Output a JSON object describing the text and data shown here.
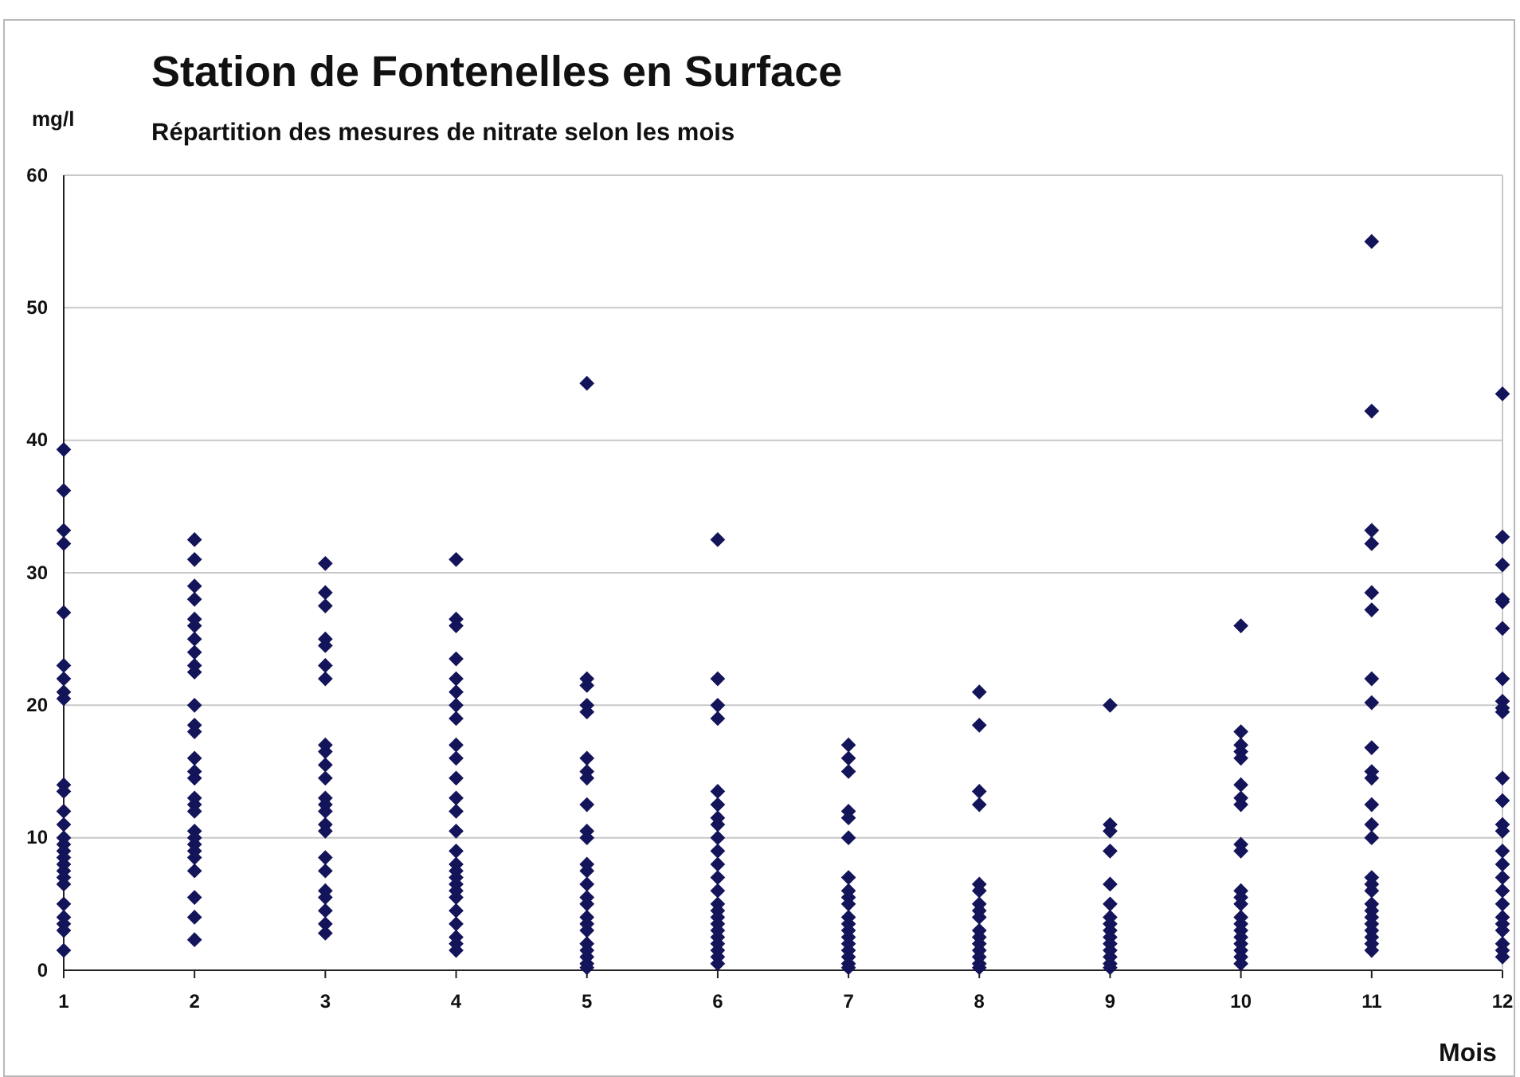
{
  "chart_data": {
    "type": "scatter",
    "title": "Station de Fontenelles en Surface",
    "subtitle": "Répartition des mesures de nitrate selon les mois",
    "xlabel": "Mois",
    "ylabel": "mg/l",
    "x": [
      1,
      1,
      1,
      1,
      1,
      1,
      1,
      1,
      1,
      1,
      1,
      1,
      1,
      1,
      1,
      1,
      1,
      1,
      1,
      1,
      1,
      1,
      1,
      1,
      1,
      1,
      2,
      2,
      2,
      2,
      2,
      2,
      2,
      2,
      2,
      2,
      2,
      2,
      2,
      2,
      2,
      2,
      2,
      2,
      2,
      2,
      2,
      2,
      2,
      2,
      2,
      2,
      2,
      2,
      3,
      3,
      3,
      3,
      3,
      3,
      3,
      3,
      3,
      3,
      3,
      3,
      3,
      3,
      3,
      3,
      3,
      3,
      3,
      3,
      3,
      3,
      3,
      4,
      4,
      4,
      4,
      4,
      4,
      4,
      4,
      4,
      4,
      4,
      4,
      4,
      4,
      4,
      4,
      4,
      4,
      4,
      4,
      4,
      4,
      4,
      4,
      4,
      4,
      5,
      5,
      5,
      5,
      5,
      5,
      5,
      5,
      5,
      5,
      5,
      5,
      5,
      5,
      5,
      5,
      5,
      5,
      5,
      5,
      5,
      5,
      5,
      5,
      6,
      6,
      6,
      6,
      6,
      6,
      6,
      6,
      6,
      6,
      6,
      6,
      6,
      6,
      6,
      6,
      6,
      6,
      6,
      6,
      6,
      6,
      6,
      7,
      7,
      7,
      7,
      7,
      7,
      7,
      7,
      7,
      7,
      7,
      7,
      7,
      7,
      7,
      7,
      7,
      7,
      7,
      8,
      8,
      8,
      8,
      8,
      8,
      8,
      8,
      8,
      8,
      8,
      8,
      8,
      8,
      8,
      8,
      9,
      9,
      9,
      9,
      9,
      9,
      9,
      9,
      9,
      9,
      9,
      9,
      9,
      9,
      9,
      10,
      10,
      10,
      10,
      10,
      10,
      10,
      10,
      10,
      10,
      10,
      10,
      10,
      10,
      10,
      10,
      10,
      10,
      10,
      10,
      10,
      11,
      11,
      11,
      11,
      11,
      11,
      11,
      11,
      11,
      11,
      11,
      11,
      11,
      11,
      11,
      11,
      11,
      11,
      11,
      11,
      11,
      11,
      11,
      11,
      11,
      12,
      12,
      12,
      12,
      12,
      12,
      12,
      12,
      12,
      12,
      12,
      12,
      12,
      12,
      12,
      12,
      12,
      12,
      12,
      12,
      12,
      12,
      12,
      12,
      12
    ],
    "values": [
      39.3,
      36.2,
      33.2,
      32.2,
      27,
      23,
      22,
      21,
      20.5,
      14,
      13.5,
      12,
      11,
      10,
      9.5,
      9,
      8.5,
      8,
      7.5,
      7,
      6.5,
      5,
      4,
      3.5,
      3,
      1.5,
      32.5,
      31,
      29,
      28,
      26.5,
      26,
      25,
      24,
      23,
      22.5,
      20,
      18.5,
      18,
      16,
      15,
      14.5,
      13,
      12.5,
      12,
      10.5,
      10,
      9.5,
      9,
      8.5,
      7.5,
      5.5,
      4,
      2.3,
      30.7,
      28.5,
      27.5,
      25,
      24.5,
      23,
      22,
      17,
      16.5,
      15.5,
      14.5,
      13,
      12.5,
      12,
      11,
      10.5,
      8.5,
      7.5,
      6,
      5.5,
      4.5,
      3.5,
      2.8,
      31,
      26.5,
      26,
      23.5,
      22,
      21,
      20,
      19,
      17,
      16,
      14.5,
      13,
      12,
      10.5,
      9,
      8,
      7.5,
      7,
      6.5,
      6,
      5.5,
      4.5,
      3.5,
      2.5,
      2,
      1.5,
      44.3,
      22,
      21.5,
      20,
      19.5,
      16,
      15,
      14.5,
      12.5,
      10.5,
      10,
      8,
      7.5,
      6.5,
      5.5,
      5,
      4,
      3.5,
      3,
      2,
      1.5,
      1,
      0.5,
      0.2,
      32.5,
      22,
      20,
      19,
      13.5,
      12.5,
      11.5,
      11,
      10,
      9,
      8,
      7,
      6,
      5,
      4.5,
      4,
      3.5,
      3,
      2.5,
      2,
      1.5,
      1,
      0.5,
      17,
      16,
      15,
      12,
      11.5,
      10,
      7,
      6,
      5.5,
      5,
      4,
      3.5,
      3,
      2.5,
      2,
      1.5,
      1,
      0.5,
      0.2,
      21,
      18.5,
      13.5,
      12.5,
      6.5,
      6,
      5,
      4.5,
      4,
      3,
      2.5,
      2,
      1.5,
      1,
      0.5,
      0.2,
      20,
      11,
      10.5,
      9,
      6.5,
      5,
      4,
      3.5,
      3,
      2.5,
      2,
      1.5,
      1,
      0.5,
      0.2,
      26,
      18,
      17,
      16.5,
      16,
      14,
      13,
      12.5,
      9.5,
      9,
      6,
      5.5,
      5,
      4,
      3.5,
      3,
      2.5,
      2,
      1.5,
      1,
      0.5,
      55,
      42.2,
      33.2,
      32.2,
      28.5,
      27.2,
      22,
      20.2,
      16.8,
      15,
      14.5,
      12.5,
      11,
      10,
      7,
      6.5,
      6,
      5,
      4.5,
      4,
      3.5,
      3,
      2.5,
      2,
      1.5,
      43.5,
      32.7,
      30.6,
      28,
      27.8,
      25.8,
      22,
      20.3,
      19.8,
      19.5,
      14.5,
      12.8,
      11,
      10.5,
      9,
      8,
      7,
      6,
      5,
      4,
      3.5,
      3,
      2,
      1.5,
      1
    ],
    "color": "#14145a",
    "marker": "diamond",
    "grid": "y",
    "xlim": [
      1,
      12
    ],
    "xticks": [
      1,
      2,
      3,
      4,
      5,
      6,
      7,
      8,
      9,
      10,
      11,
      12
    ],
    "ylim": [
      0,
      60
    ],
    "yticks": [
      0,
      10,
      20,
      30,
      40,
      50,
      60
    ]
  }
}
